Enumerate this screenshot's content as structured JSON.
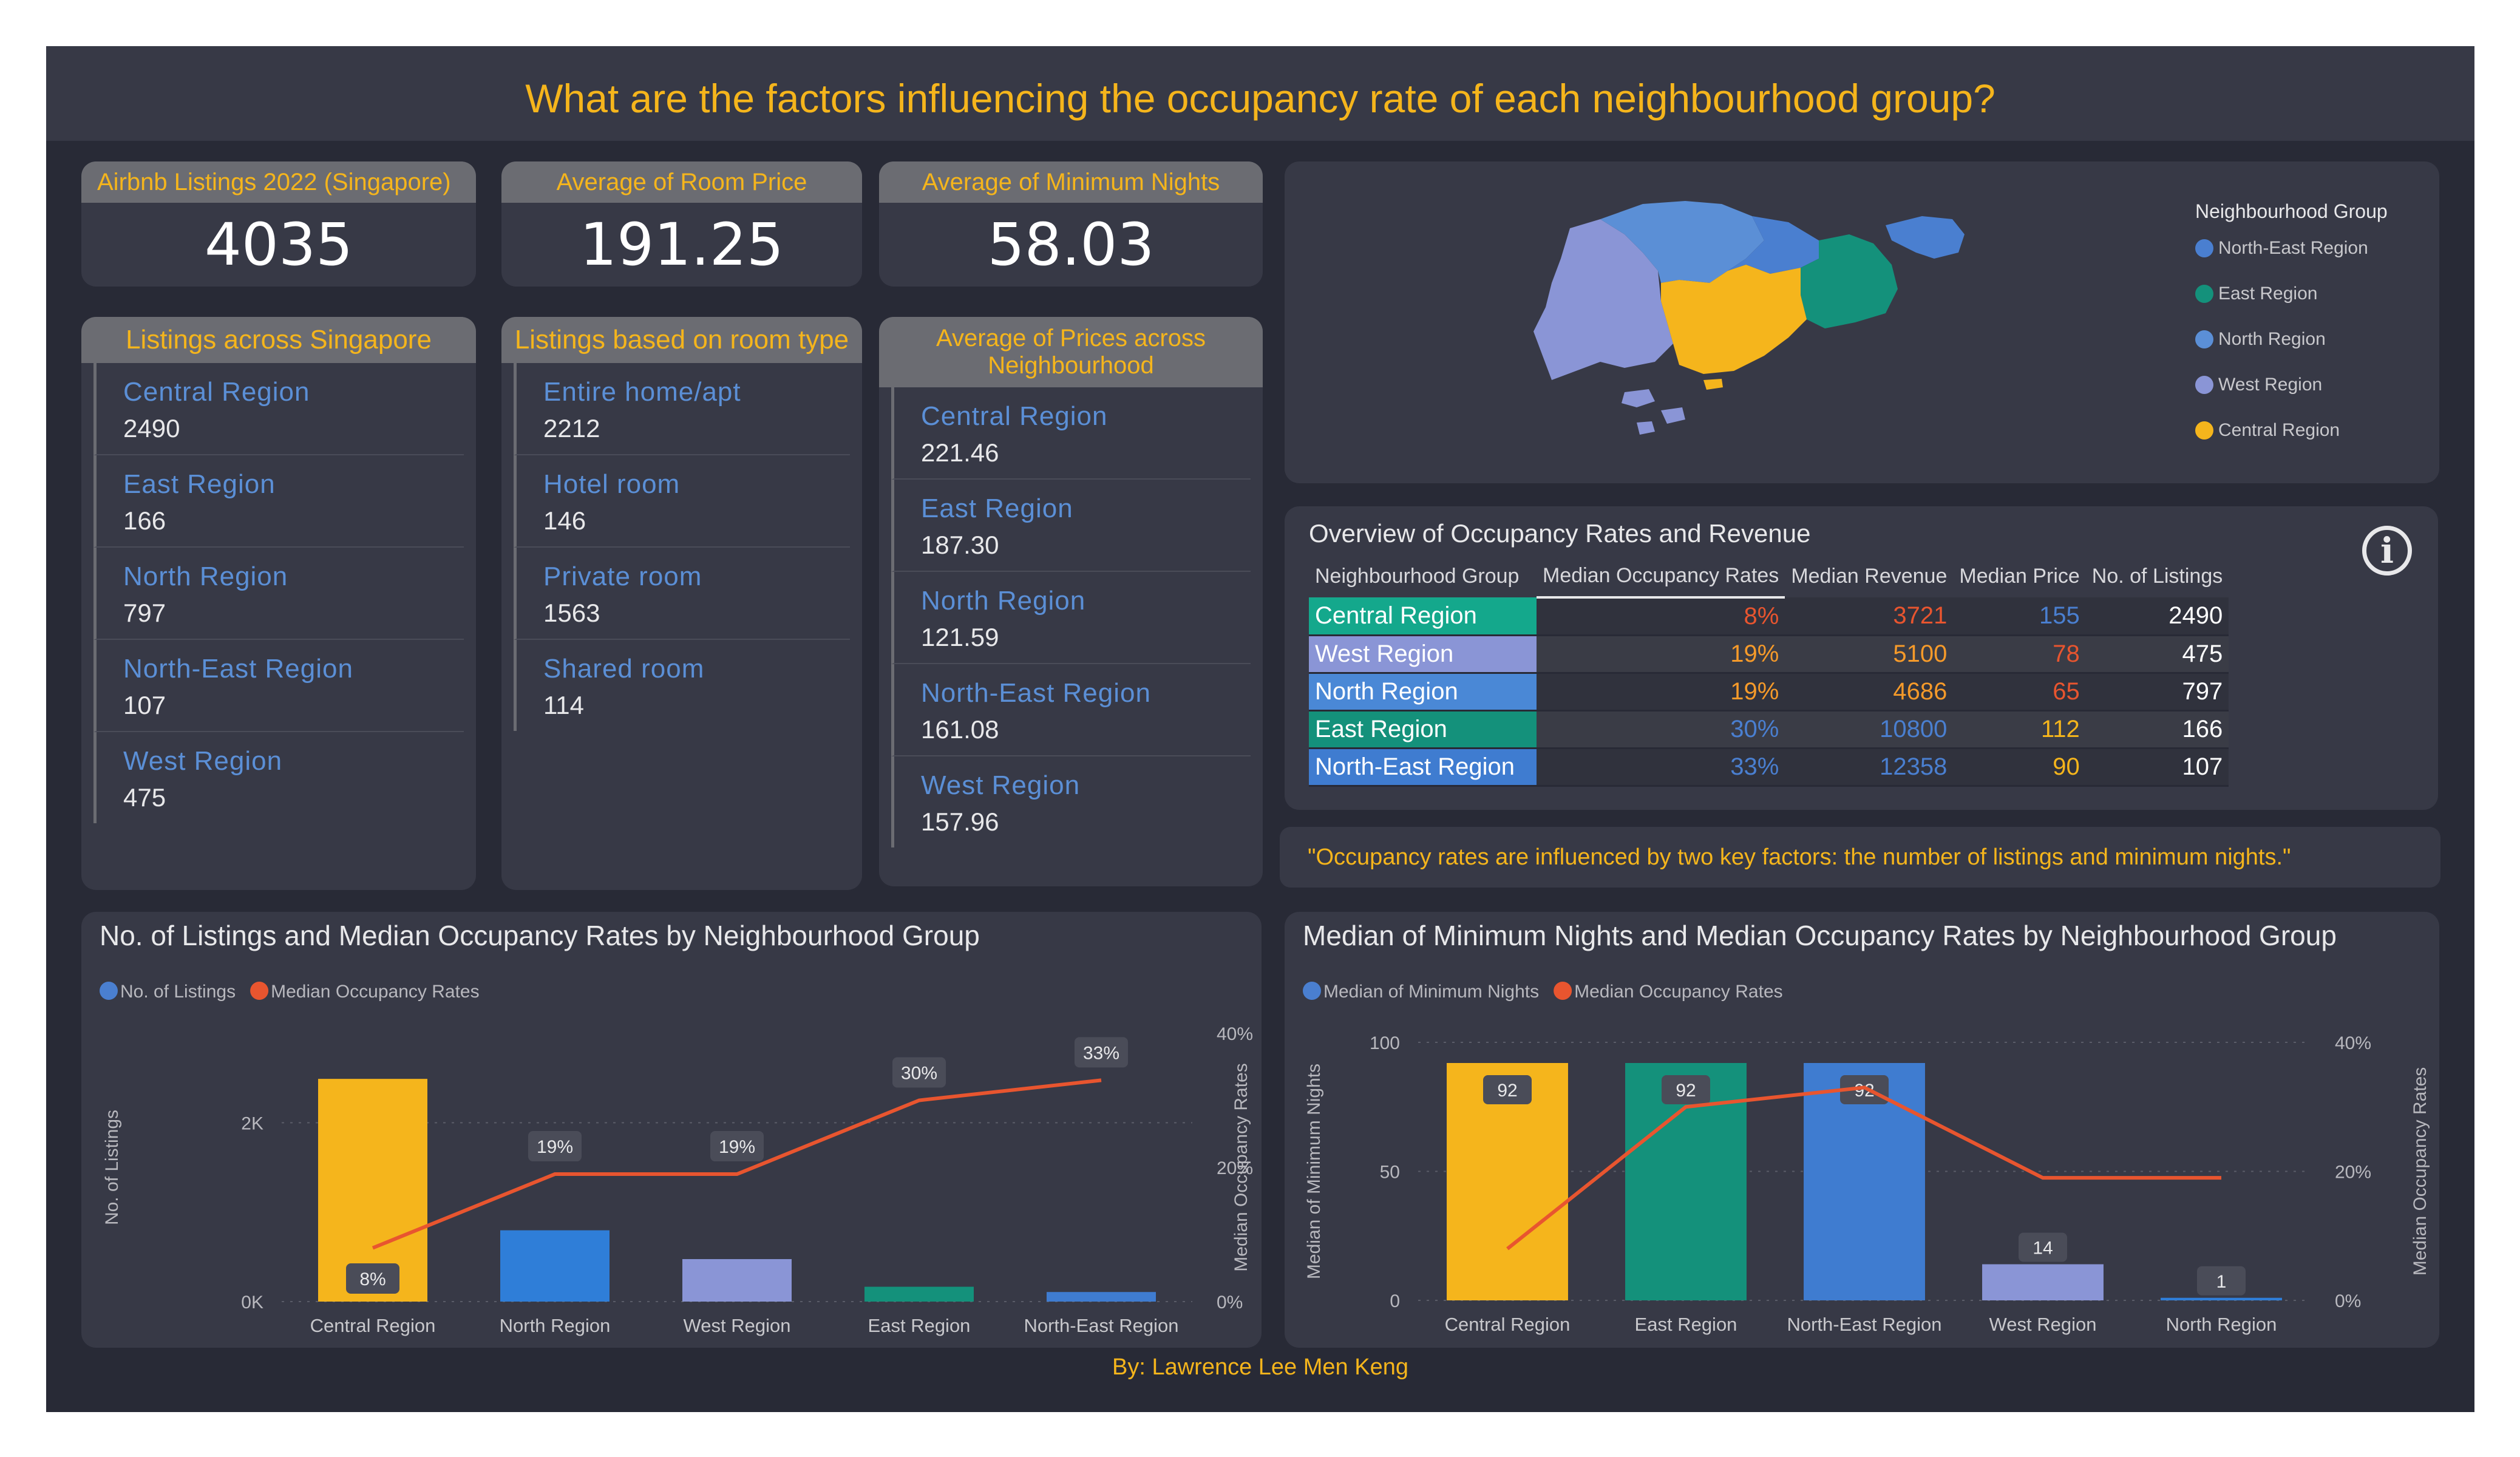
{
  "title": "What are the factors influencing the occupancy rate of each neighbourhood group?",
  "kpis": [
    {
      "label": "Airbnb Listings 2022 (Singapore)",
      "value": "4035"
    },
    {
      "label": "Average of Room Price",
      "value": "191.25"
    },
    {
      "label": "Average of Minimum Nights",
      "value": "58.03"
    }
  ],
  "listings_region": {
    "title": "Listings across Singapore",
    "items": [
      {
        "label": "Central Region",
        "value": "2490"
      },
      {
        "label": "East Region",
        "value": "166"
      },
      {
        "label": "North Region",
        "value": "797"
      },
      {
        "label": "North-East Region",
        "value": "107"
      },
      {
        "label": "West Region",
        "value": "475"
      }
    ]
  },
  "listings_room": {
    "title": "Listings based on room type",
    "items": [
      {
        "label": "Entire home/apt",
        "value": "2212"
      },
      {
        "label": "Hotel room",
        "value": "146"
      },
      {
        "label": "Private room",
        "value": "1563"
      },
      {
        "label": "Shared room",
        "value": "114"
      }
    ]
  },
  "avg_prices": {
    "title": "Average of Prices across Neighbourhood",
    "items": [
      {
        "label": "Central Region",
        "value": "221.46"
      },
      {
        "label": "East Region",
        "value": "187.30"
      },
      {
        "label": "North Region",
        "value": "121.59"
      },
      {
        "label": "North-East Region",
        "value": "161.08"
      },
      {
        "label": "West Region",
        "value": "157.96"
      }
    ]
  },
  "map_legend": {
    "title": "Neighbourhood Group",
    "items": [
      {
        "label": "North-East Region",
        "color": "#4a7fd0"
      },
      {
        "label": "East Region",
        "color": "#14917b"
      },
      {
        "label": "North Region",
        "color": "#5b8fd6"
      },
      {
        "label": "West Region",
        "color": "#8a95d6"
      },
      {
        "label": "Central Region",
        "color": "#f5b51c"
      }
    ]
  },
  "overview": {
    "title": "Overview of Occupancy Rates and Revenue",
    "headers": [
      "Neighbourhood Group",
      "Median Occupancy Rates",
      "Median Revenue",
      "Median Price",
      "No. of Listings"
    ],
    "rows": [
      {
        "name": "Central Region",
        "color": "#14a88c",
        "occ": "8%",
        "rev": "3721",
        "price": "155",
        "listings": "2490"
      },
      {
        "name": "West Region",
        "color": "#8a95d6",
        "occ": "19%",
        "rev": "5100",
        "price": "78",
        "listings": "475"
      },
      {
        "name": "North Region",
        "color": "#4a88d6",
        "occ": "19%",
        "rev": "4686",
        "price": "65",
        "listings": "797"
      },
      {
        "name": "East Region",
        "color": "#14917b",
        "occ": "30%",
        "rev": "10800",
        "price": "112",
        "listings": "166"
      },
      {
        "name": "North-East Region",
        "color": "#3f7cd0",
        "occ": "33%",
        "rev": "12358",
        "price": "90",
        "listings": "107"
      }
    ]
  },
  "quote": "\"Occupancy rates are influenced by two key factors: the number of listings and minimum nights.\"",
  "chart_data": [
    {
      "type": "bar",
      "title": "No. of Listings and Median Occupancy Rates by Neighbourhood Group",
      "categories": [
        "Central Region",
        "North Region",
        "West Region",
        "East Region",
        "North-East Region"
      ],
      "series": [
        {
          "name": "No. of Listings",
          "type": "bar",
          "values": [
            2490,
            797,
            475,
            166,
            107
          ],
          "colors": [
            "#f5b51c",
            "#2f7ed8",
            "#8a95d6",
            "#14917b",
            "#3f7cd0"
          ]
        },
        {
          "name": "Median Occupancy Rates",
          "type": "line",
          "values": [
            8,
            19,
            19,
            30,
            33
          ],
          "labels": [
            "8%",
            "19%",
            "19%",
            "30%",
            "33%"
          ],
          "color": "#e8552f"
        }
      ],
      "ylabel": "No. of Listings",
      "ylabel2": "Median Occupancy Rates",
      "ylim": [
        0,
        3000
      ],
      "y2lim": [
        0,
        40
      ],
      "yticks": [
        {
          "v": 0,
          "t": "0K"
        },
        {
          "v": 2000,
          "t": "2K"
        }
      ],
      "y2ticks": [
        {
          "v": 0,
          "t": "0%"
        },
        {
          "v": 20,
          "t": "20%"
        },
        {
          "v": 40,
          "t": "40%"
        }
      ],
      "legend": "top-left"
    },
    {
      "type": "bar",
      "title": "Median of Minimum Nights and Median Occupancy Rates by Neighbourhood Group",
      "categories": [
        "Central Region",
        "East Region",
        "North-East Region",
        "West Region",
        "North Region"
      ],
      "series": [
        {
          "name": "Median of Minimum Nights",
          "type": "bar",
          "values": [
            92,
            92,
            92,
            14,
            1
          ],
          "labels": [
            "92",
            "92",
            "92",
            "14",
            "1"
          ],
          "colors": [
            "#f5b51c",
            "#14917b",
            "#3f7cd0",
            "#8a95d6",
            "#2f7ed8"
          ]
        },
        {
          "name": "Median Occupancy Rates",
          "type": "line",
          "values": [
            8,
            30,
            33,
            19,
            19
          ],
          "color": "#e8552f"
        }
      ],
      "ylabel": "Median of Minimum Nights",
      "ylabel2": "Median Occupancy Rates",
      "ylim": [
        0,
        100
      ],
      "y2lim": [
        0,
        40
      ],
      "yticks": [
        {
          "v": 0,
          "t": "0"
        },
        {
          "v": 50,
          "t": "50"
        },
        {
          "v": 100,
          "t": "100"
        }
      ],
      "y2ticks": [
        {
          "v": 0,
          "t": "0%"
        },
        {
          "v": 20,
          "t": "20%"
        },
        {
          "v": 40,
          "t": "40%"
        }
      ],
      "legend": "top-left"
    }
  ],
  "footer": "By: Lawrence Lee Men Keng"
}
